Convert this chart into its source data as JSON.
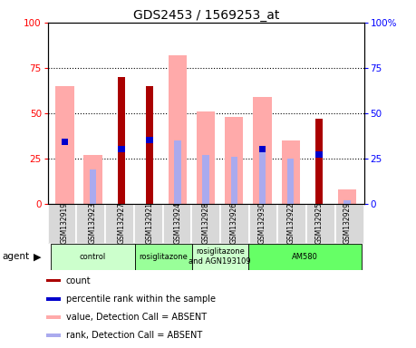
{
  "title": "GDS2453 / 1569253_at",
  "samples": [
    "GSM132919",
    "GSM132923",
    "GSM132927",
    "GSM132921",
    "GSM132924",
    "GSM132928",
    "GSM132926",
    "GSM132930",
    "GSM132922",
    "GSM132925",
    "GSM132929"
  ],
  "count_values": [
    0,
    0,
    70,
    65,
    0,
    0,
    0,
    0,
    0,
    47,
    0
  ],
  "percentile_rank": [
    34,
    0,
    30,
    35,
    0,
    0,
    0,
    30,
    0,
    27,
    0
  ],
  "absent_value": [
    65,
    27,
    0,
    0,
    82,
    51,
    48,
    59,
    35,
    0,
    8
  ],
  "absent_rank": [
    0,
    19,
    0,
    0,
    35,
    27,
    26,
    29,
    25,
    0,
    2
  ],
  "agents": [
    {
      "label": "control",
      "start": 0,
      "end": 3,
      "color": "#ccffcc"
    },
    {
      "label": "rosiglitazone",
      "start": 3,
      "end": 5,
      "color": "#99ff99"
    },
    {
      "label": "rosiglitazone\nand AGN193109",
      "start": 5,
      "end": 7,
      "color": "#ccffcc"
    },
    {
      "label": "AM580",
      "start": 7,
      "end": 11,
      "color": "#66ff66"
    }
  ],
  "ylim": [
    0,
    100
  ],
  "color_count": "#aa0000",
  "color_rank": "#0000cc",
  "color_absent_value": "#ffaaaa",
  "color_absent_rank": "#aaaaee",
  "bar_width": 0.65,
  "background_color": "#ffffff"
}
